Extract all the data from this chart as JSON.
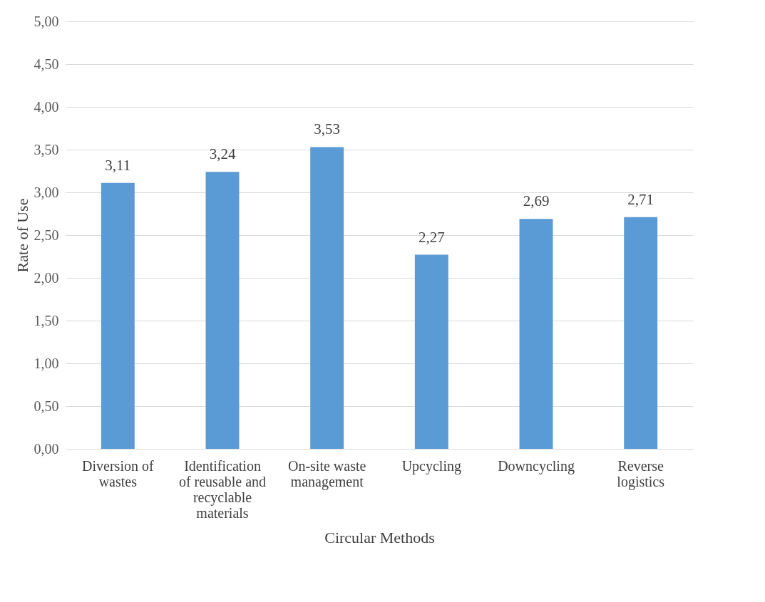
{
  "chart_data": {
    "type": "bar",
    "xlabel": "Circular Methods",
    "ylabel": "Rate of Use",
    "categories": [
      "Diversion of wastes",
      "Identification of reusable and recyclable materials",
      "On-site waste management",
      "Upcycling",
      "Downcycling",
      "Reverse logistics"
    ],
    "values": [
      3.11,
      3.24,
      3.53,
      2.27,
      2.69,
      2.71
    ],
    "value_labels": [
      "3,11",
      "3,24",
      "3,53",
      "2,27",
      "2,69",
      "2,71"
    ],
    "color": "#5b9bd5",
    "ylim": [
      0,
      5
    ],
    "yticks": [
      {
        "value": 0,
        "label": "0,00"
      },
      {
        "value": 0.5,
        "label": "0,50"
      },
      {
        "value": 1,
        "label": "1,00"
      },
      {
        "value": 1.5,
        "label": "1,50"
      },
      {
        "value": 2,
        "label": "2,00"
      },
      {
        "value": 2.5,
        "label": "2,50"
      },
      {
        "value": 3,
        "label": "3,00"
      },
      {
        "value": 3.5,
        "label": "3,50"
      },
      {
        "value": 4,
        "label": "4,00"
      },
      {
        "value": 4.5,
        "label": "4,50"
      },
      {
        "value": 5,
        "label": "5,00"
      }
    ],
    "grid": "y"
  }
}
